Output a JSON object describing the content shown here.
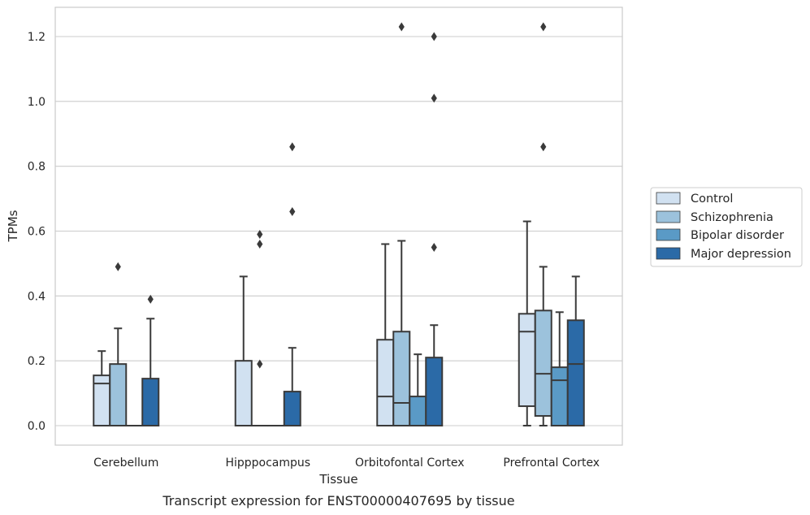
{
  "chart_data": {
    "type": "box",
    "xlabel": "Tissue",
    "ylabel": "TPMs",
    "caption": "Transcript expression for ENST00000407695 by tissue",
    "ylim": [
      -0.06,
      1.29
    ],
    "yticks": [
      "0.0",
      "0.2",
      "0.4",
      "0.6",
      "0.8",
      "1.0",
      "1.2"
    ],
    "ytick_values": [
      0.0,
      0.2,
      0.4,
      0.6,
      0.8,
      1.0,
      1.2
    ],
    "grid": "horizontal",
    "legend_placement": "right",
    "categories": [
      "Cerebellum",
      "Hipppocampus",
      "Orbitofontal Cortex",
      "Prefrontal Cortex"
    ],
    "series": [
      {
        "name": "Control",
        "color": "#d1e1f1",
        "boxes": [
          {
            "q1": 0.0,
            "median": 0.13,
            "q3": 0.155,
            "whisker_low": 0.0,
            "whisker_high": 0.23,
            "outliers": []
          },
          {
            "q1": 0.0,
            "median": 0.0,
            "q3": 0.2,
            "whisker_low": 0.0,
            "whisker_high": 0.46,
            "outliers": []
          },
          {
            "q1": 0.0,
            "median": 0.09,
            "q3": 0.265,
            "whisker_low": 0.0,
            "whisker_high": 0.56,
            "outliers": []
          },
          {
            "q1": 0.06,
            "median": 0.29,
            "q3": 0.345,
            "whisker_low": 0.0,
            "whisker_high": 0.63,
            "outliers": []
          }
        ]
      },
      {
        "name": "Schizophrenia",
        "color": "#9cc2dc",
        "boxes": [
          {
            "q1": 0.0,
            "median": 0.0,
            "q3": 0.19,
            "whisker_low": 0.0,
            "whisker_high": 0.3,
            "outliers": [
              0.49
            ]
          },
          {
            "q1": 0.0,
            "median": 0.0,
            "q3": 0.0,
            "whisker_low": 0.0,
            "whisker_high": 0.0,
            "outliers": [
              0.19,
              0.56,
              0.59
            ]
          },
          {
            "q1": 0.0,
            "median": 0.07,
            "q3": 0.29,
            "whisker_low": 0.0,
            "whisker_high": 0.57,
            "outliers": [
              1.23
            ]
          },
          {
            "q1": 0.03,
            "median": 0.16,
            "q3": 0.355,
            "whisker_low": 0.0,
            "whisker_high": 0.49,
            "outliers": [
              0.86,
              1.23
            ]
          }
        ]
      },
      {
        "name": "Bipolar disorder",
        "color": "#5a9ac6",
        "boxes": [
          {
            "q1": 0.0,
            "median": 0.0,
            "q3": 0.0,
            "whisker_low": 0.0,
            "whisker_high": 0.0,
            "outliers": []
          },
          {
            "q1": 0.0,
            "median": 0.0,
            "q3": 0.0,
            "whisker_low": 0.0,
            "whisker_high": 0.0,
            "outliers": []
          },
          {
            "q1": 0.0,
            "median": 0.0,
            "q3": 0.09,
            "whisker_low": 0.0,
            "whisker_high": 0.22,
            "outliers": []
          },
          {
            "q1": 0.0,
            "median": 0.14,
            "q3": 0.18,
            "whisker_low": 0.0,
            "whisker_high": 0.35,
            "outliers": []
          }
        ]
      },
      {
        "name": "Major depression",
        "color": "#2b6aa7",
        "boxes": [
          {
            "q1": 0.0,
            "median": 0.0,
            "q3": 0.145,
            "whisker_low": 0.0,
            "whisker_high": 0.33,
            "outliers": [
              0.39
            ]
          },
          {
            "q1": 0.0,
            "median": 0.0,
            "q3": 0.105,
            "whisker_low": 0.0,
            "whisker_high": 0.24,
            "outliers": [
              0.66,
              0.86
            ]
          },
          {
            "q1": 0.0,
            "median": 0.0,
            "q3": 0.21,
            "whisker_low": 0.0,
            "whisker_high": 0.31,
            "outliers": [
              0.55,
              1.01,
              1.2
            ]
          },
          {
            "q1": 0.0,
            "median": 0.19,
            "q3": 0.325,
            "whisker_low": 0.0,
            "whisker_high": 0.46,
            "outliers": []
          }
        ]
      }
    ]
  }
}
